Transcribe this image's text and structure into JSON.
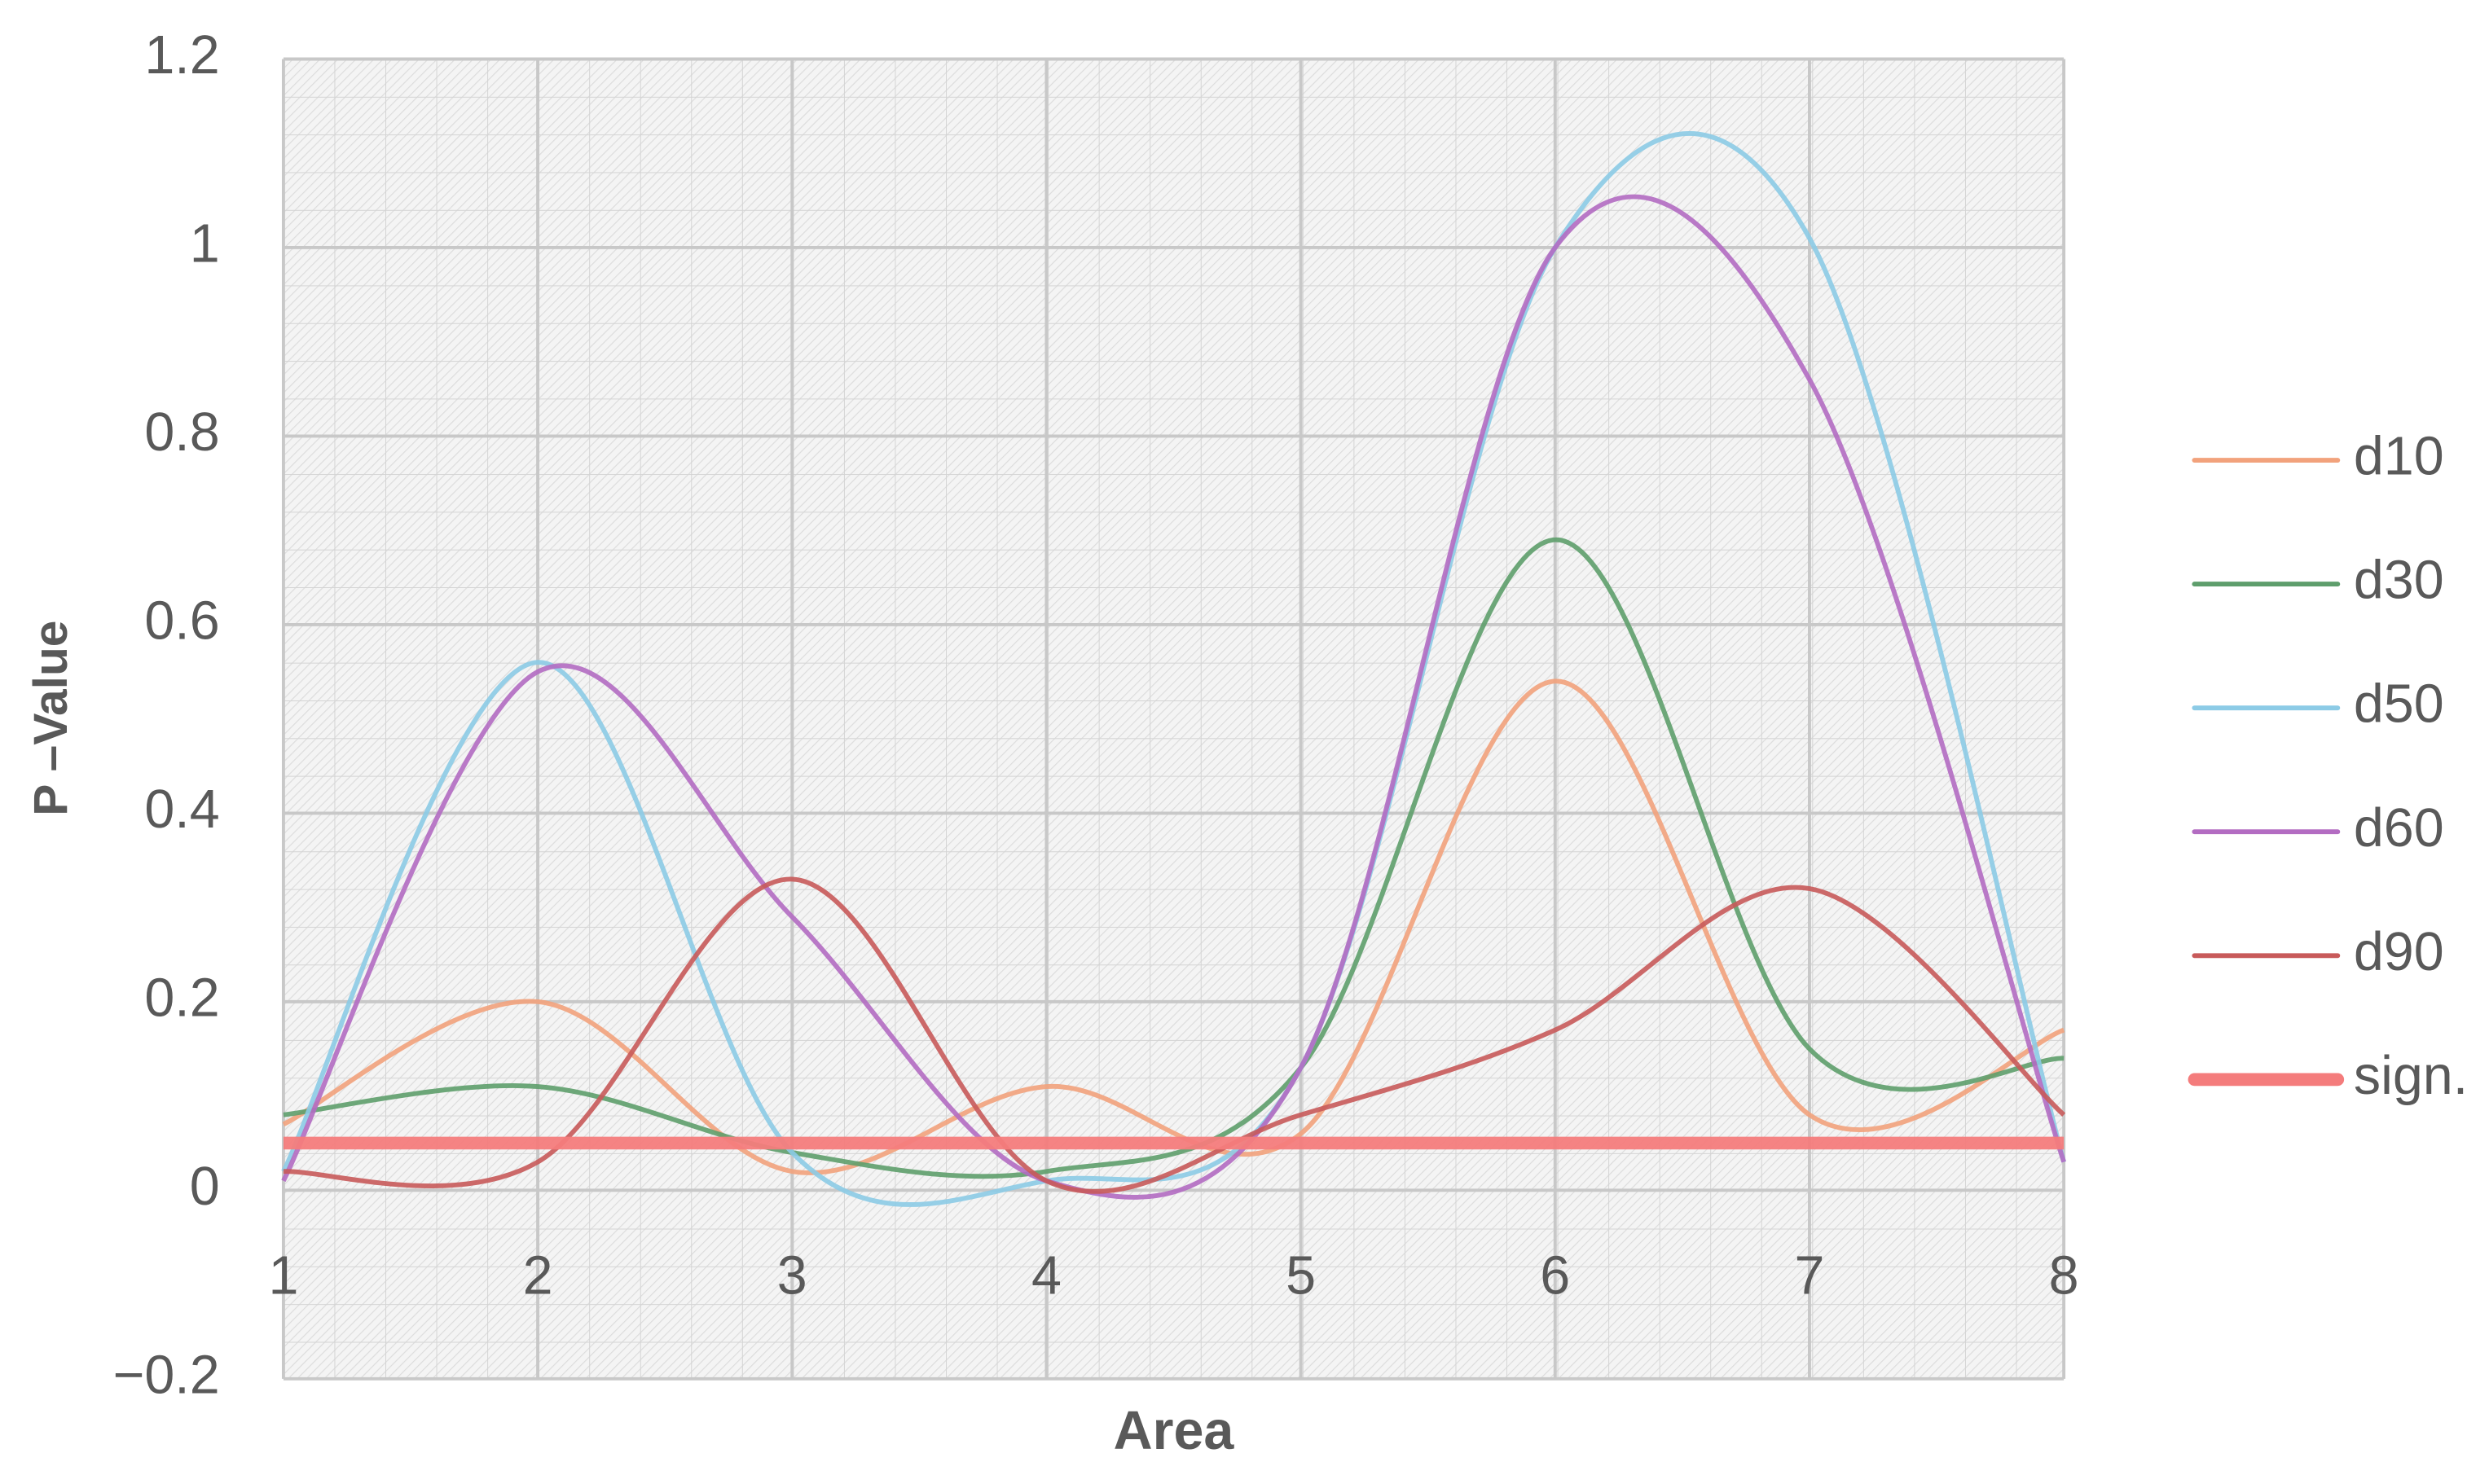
{
  "chart_data": {
    "type": "line",
    "x_label": "Area",
    "y_label": "P –Value",
    "x": [
      1,
      2,
      3,
      4,
      5,
      6,
      7,
      8
    ],
    "xlim": [
      1,
      8
    ],
    "xticks": [
      1,
      2,
      3,
      4,
      5,
      6,
      7,
      8
    ],
    "ylim": [
      -0.2,
      1.2
    ],
    "yticks": [
      {
        "value": -0.2,
        "label": "−0.2"
      },
      0,
      0.2,
      0.4,
      0.6,
      0.8,
      1,
      1.2
    ],
    "grid": true,
    "smooth": true,
    "legend": "right",
    "series": [
      {
        "name": "d10",
        "color": "#f2a27c",
        "values": [
          0.07,
          0.2,
          0.02,
          0.11,
          0.06,
          0.54,
          0.08,
          0.17
        ]
      },
      {
        "name": "d30",
        "color": "#5e9e6c",
        "values": [
          0.08,
          0.11,
          0.04,
          0.02,
          0.13,
          0.69,
          0.15,
          0.14
        ]
      },
      {
        "name": "d50",
        "color": "#8ccbe6",
        "values": [
          0.02,
          0.56,
          0.04,
          0.01,
          0.13,
          1.0,
          1.01,
          0.03
        ]
      },
      {
        "name": "d60",
        "color": "#b36cc2",
        "values": [
          0.01,
          0.55,
          0.29,
          0.01,
          0.13,
          1.0,
          0.86,
          0.03
        ]
      },
      {
        "name": "d90",
        "color": "#c85a5a",
        "values": [
          0.02,
          0.03,
          0.33,
          0.01,
          0.08,
          0.17,
          0.32,
          0.08
        ]
      },
      {
        "name": "sign.",
        "color": "#f47c7c",
        "values": [
          0.05,
          0.05,
          0.05,
          0.05,
          0.05,
          0.05,
          0.05,
          0.05
        ],
        "width": 8
      }
    ]
  }
}
